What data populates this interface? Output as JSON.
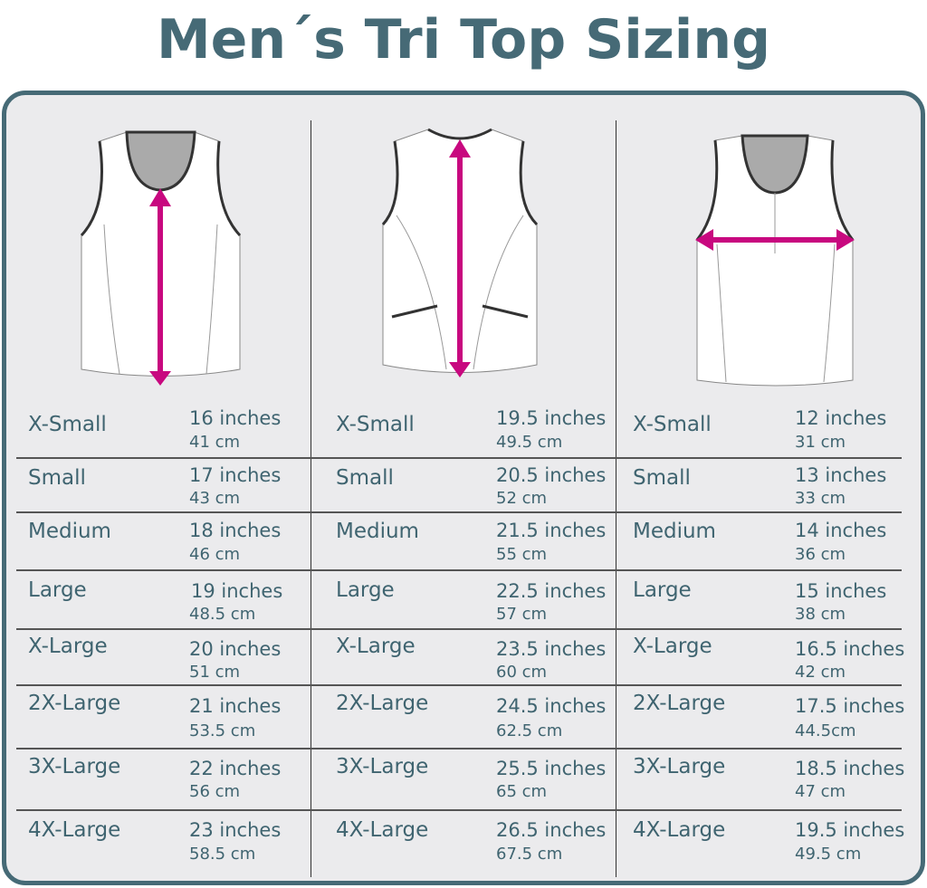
{
  "title": "Men´s Tri Top Sizing",
  "colors": {
    "accent": "#c8087f",
    "frame": "#466a76",
    "text": "#3f6470",
    "panel": "#ebebed"
  },
  "columns": [
    {
      "illustration": "front-length-measurement",
      "rows": [
        {
          "size": "X-Small",
          "inches": "16 inches",
          "cm": "41 cm"
        },
        {
          "size": "Small",
          "inches": "17 inches",
          "cm": "43 cm"
        },
        {
          "size": "Medium",
          "inches": "18 inches",
          "cm": "46 cm"
        },
        {
          "size": "Large",
          "inches": "19 inches",
          "cm": "48.5 cm"
        },
        {
          "size": "X-Large",
          "inches": "20 inches",
          "cm": "51 cm"
        },
        {
          "size": "2X-Large",
          "inches": "21 inches",
          "cm": "53.5 cm"
        },
        {
          "size": "3X-Large",
          "inches": "22 inches",
          "cm": "56 cm"
        },
        {
          "size": "4X-Large",
          "inches": "23 inches",
          "cm": "58.5 cm"
        }
      ]
    },
    {
      "illustration": "back-length-measurement",
      "rows": [
        {
          "size": "X-Small",
          "inches": "19.5 inches",
          "cm": "49.5 cm"
        },
        {
          "size": "Small",
          "inches": "20.5 inches",
          "cm": "52 cm"
        },
        {
          "size": "Medium",
          "inches": "21.5 inches",
          "cm": "55 cm"
        },
        {
          "size": "Large",
          "inches": "22.5 inches",
          "cm": "57 cm"
        },
        {
          "size": "X-Large",
          "inches": "23.5 inches",
          "cm": "60 cm"
        },
        {
          "size": "2X-Large",
          "inches": "24.5 inches",
          "cm": "62.5 cm"
        },
        {
          "size": "3X-Large",
          "inches": "25.5 inches",
          "cm": "65 cm"
        },
        {
          "size": "4X-Large",
          "inches": "26.5 inches",
          "cm": "67.5 cm"
        }
      ]
    },
    {
      "illustration": "chest-width-measurement",
      "rows": [
        {
          "size": "X-Small",
          "inches": "12 inches",
          "cm": "31 cm"
        },
        {
          "size": "Small",
          "inches": "13 inches",
          "cm": "33 cm"
        },
        {
          "size": "Medium",
          "inches": "14 inches",
          "cm": "36 cm"
        },
        {
          "size": "Large",
          "inches": "15 inches",
          "cm": "38 cm"
        },
        {
          "size": "X-Large",
          "inches": "16.5 inches",
          "cm": "42 cm"
        },
        {
          "size": "2X-Large",
          "inches": "17.5 inches",
          "cm": "44.5cm"
        },
        {
          "size": "3X-Large",
          "inches": "18.5 inches",
          "cm": "47 cm"
        },
        {
          "size": "4X-Large",
          "inches": "19.5 inches",
          "cm": "49.5 cm"
        }
      ]
    }
  ]
}
